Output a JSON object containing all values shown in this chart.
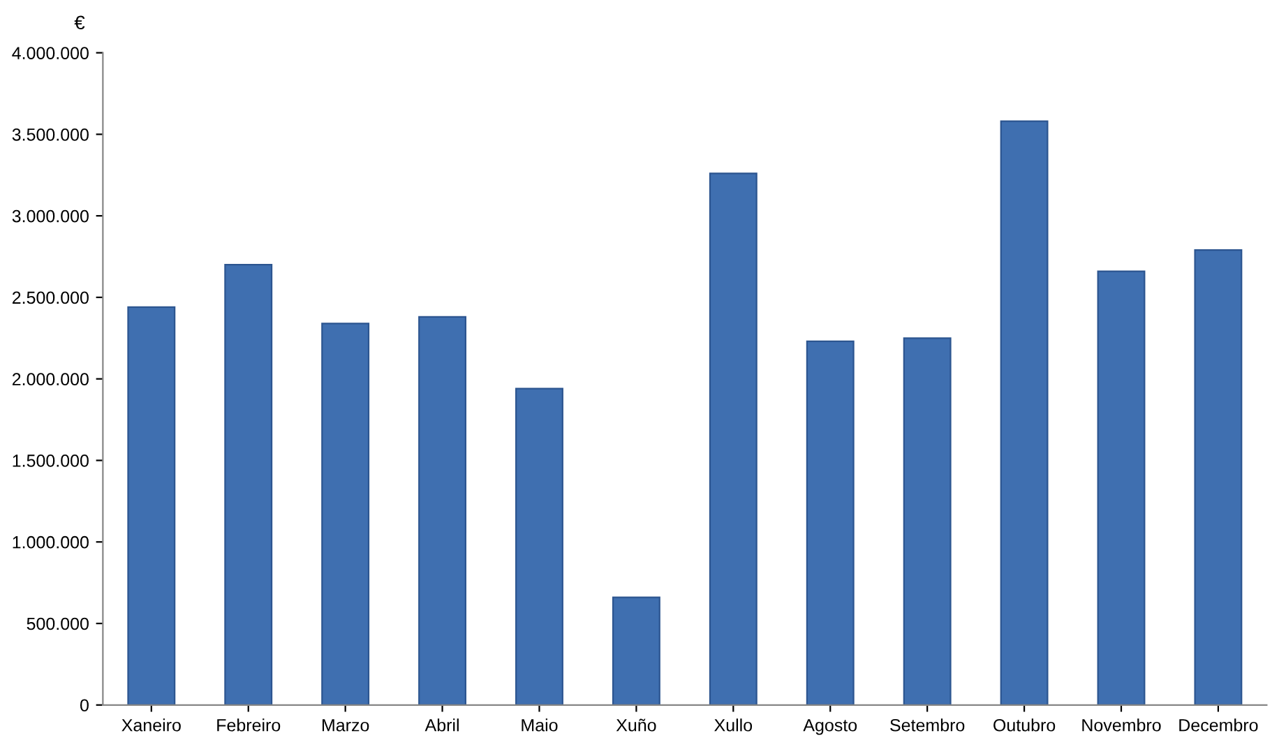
{
  "chart_data": {
    "type": "bar",
    "ylabel": "€",
    "categories": [
      "Xaneiro",
      "Febreiro",
      "Marzo",
      "Abril",
      "Maio",
      "Xuño",
      "Xullo",
      "Agosto",
      "Setembro",
      "Outubro",
      "Novembro",
      "Decembro"
    ],
    "values": [
      2440000,
      2700000,
      2340000,
      2380000,
      1940000,
      660000,
      3260000,
      2230000,
      2250000,
      3580000,
      2660000,
      2790000
    ],
    "color": "#3f6fb0",
    "ylim": [
      0,
      4000000
    ],
    "yticks": [
      0,
      {
        "value": 500000,
        "label": "500.000"
      },
      {
        "value": 1000000,
        "label": "1.000.000"
      },
      {
        "value": 1500000,
        "label": "1.500.000"
      },
      {
        "value": 2000000,
        "label": "2.000.000"
      },
      {
        "value": 2500000,
        "label": "2.500.000"
      },
      {
        "value": 3000000,
        "label": "3.000.000"
      },
      {
        "value": 3500000,
        "label": "3.500.000"
      },
      {
        "value": 4000000,
        "label": "4.000.000"
      }
    ],
    "grid": false
  }
}
